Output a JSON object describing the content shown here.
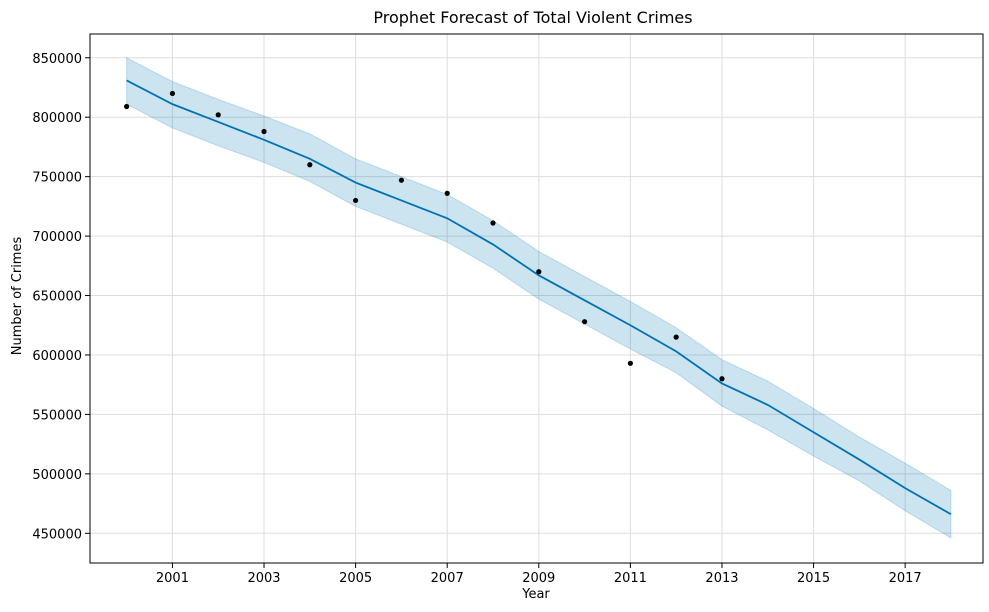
{
  "chart_data": {
    "type": "line",
    "title": "Prophet Forecast of Total Violent Crimes",
    "xlabel": "Year",
    "ylabel": "Number of Crimes",
    "xlim": [
      1999.2,
      2018.7
    ],
    "ylim": [
      425000,
      870000
    ],
    "x_ticks": [
      2001,
      2003,
      2005,
      2007,
      2009,
      2011,
      2013,
      2015,
      2017
    ],
    "y_ticks": [
      450000,
      500000,
      550000,
      600000,
      650000,
      700000,
      750000,
      800000,
      850000
    ],
    "grid": true,
    "colors": {
      "forecast_line": "#0072B2",
      "uncertainty_band": "#0072B2",
      "observed_points": "#000000",
      "grid": "#dddddd"
    },
    "series": [
      {
        "kind": "observed",
        "x": [
          2000,
          2001,
          2002,
          2003,
          2004,
          2005,
          2006,
          2007,
          2008,
          2009,
          2010,
          2011,
          2012,
          2013
        ],
        "values": [
          809000,
          820000,
          802000,
          788000,
          760000,
          730000,
          747000,
          736000,
          711000,
          670000,
          628000,
          593000,
          615000,
          580000
        ]
      },
      {
        "kind": "forecast",
        "x": [
          2000,
          2001,
          2002,
          2003,
          2004,
          2005,
          2006,
          2007,
          2008,
          2009,
          2010,
          2011,
          2012,
          2013,
          2014,
          2015,
          2016,
          2017,
          2018
        ],
        "values": [
          831000,
          811000,
          796000,
          781000,
          765000,
          745000,
          730000,
          715000,
          693000,
          667000,
          646000,
          625000,
          603000,
          576000,
          558000,
          535000,
          512000,
          488000,
          466000
        ],
        "lower": [
          811000,
          791000,
          776000,
          762000,
          746000,
          725000,
          710000,
          695000,
          673000,
          647000,
          626000,
          605000,
          585000,
          557000,
          537000,
          515000,
          494000,
          469000,
          446000
        ],
        "upper": [
          850000,
          830000,
          815000,
          801000,
          786000,
          765000,
          750000,
          735000,
          713000,
          687000,
          666000,
          645000,
          623000,
          596000,
          578000,
          555000,
          531000,
          509000,
          486000
        ]
      }
    ]
  }
}
